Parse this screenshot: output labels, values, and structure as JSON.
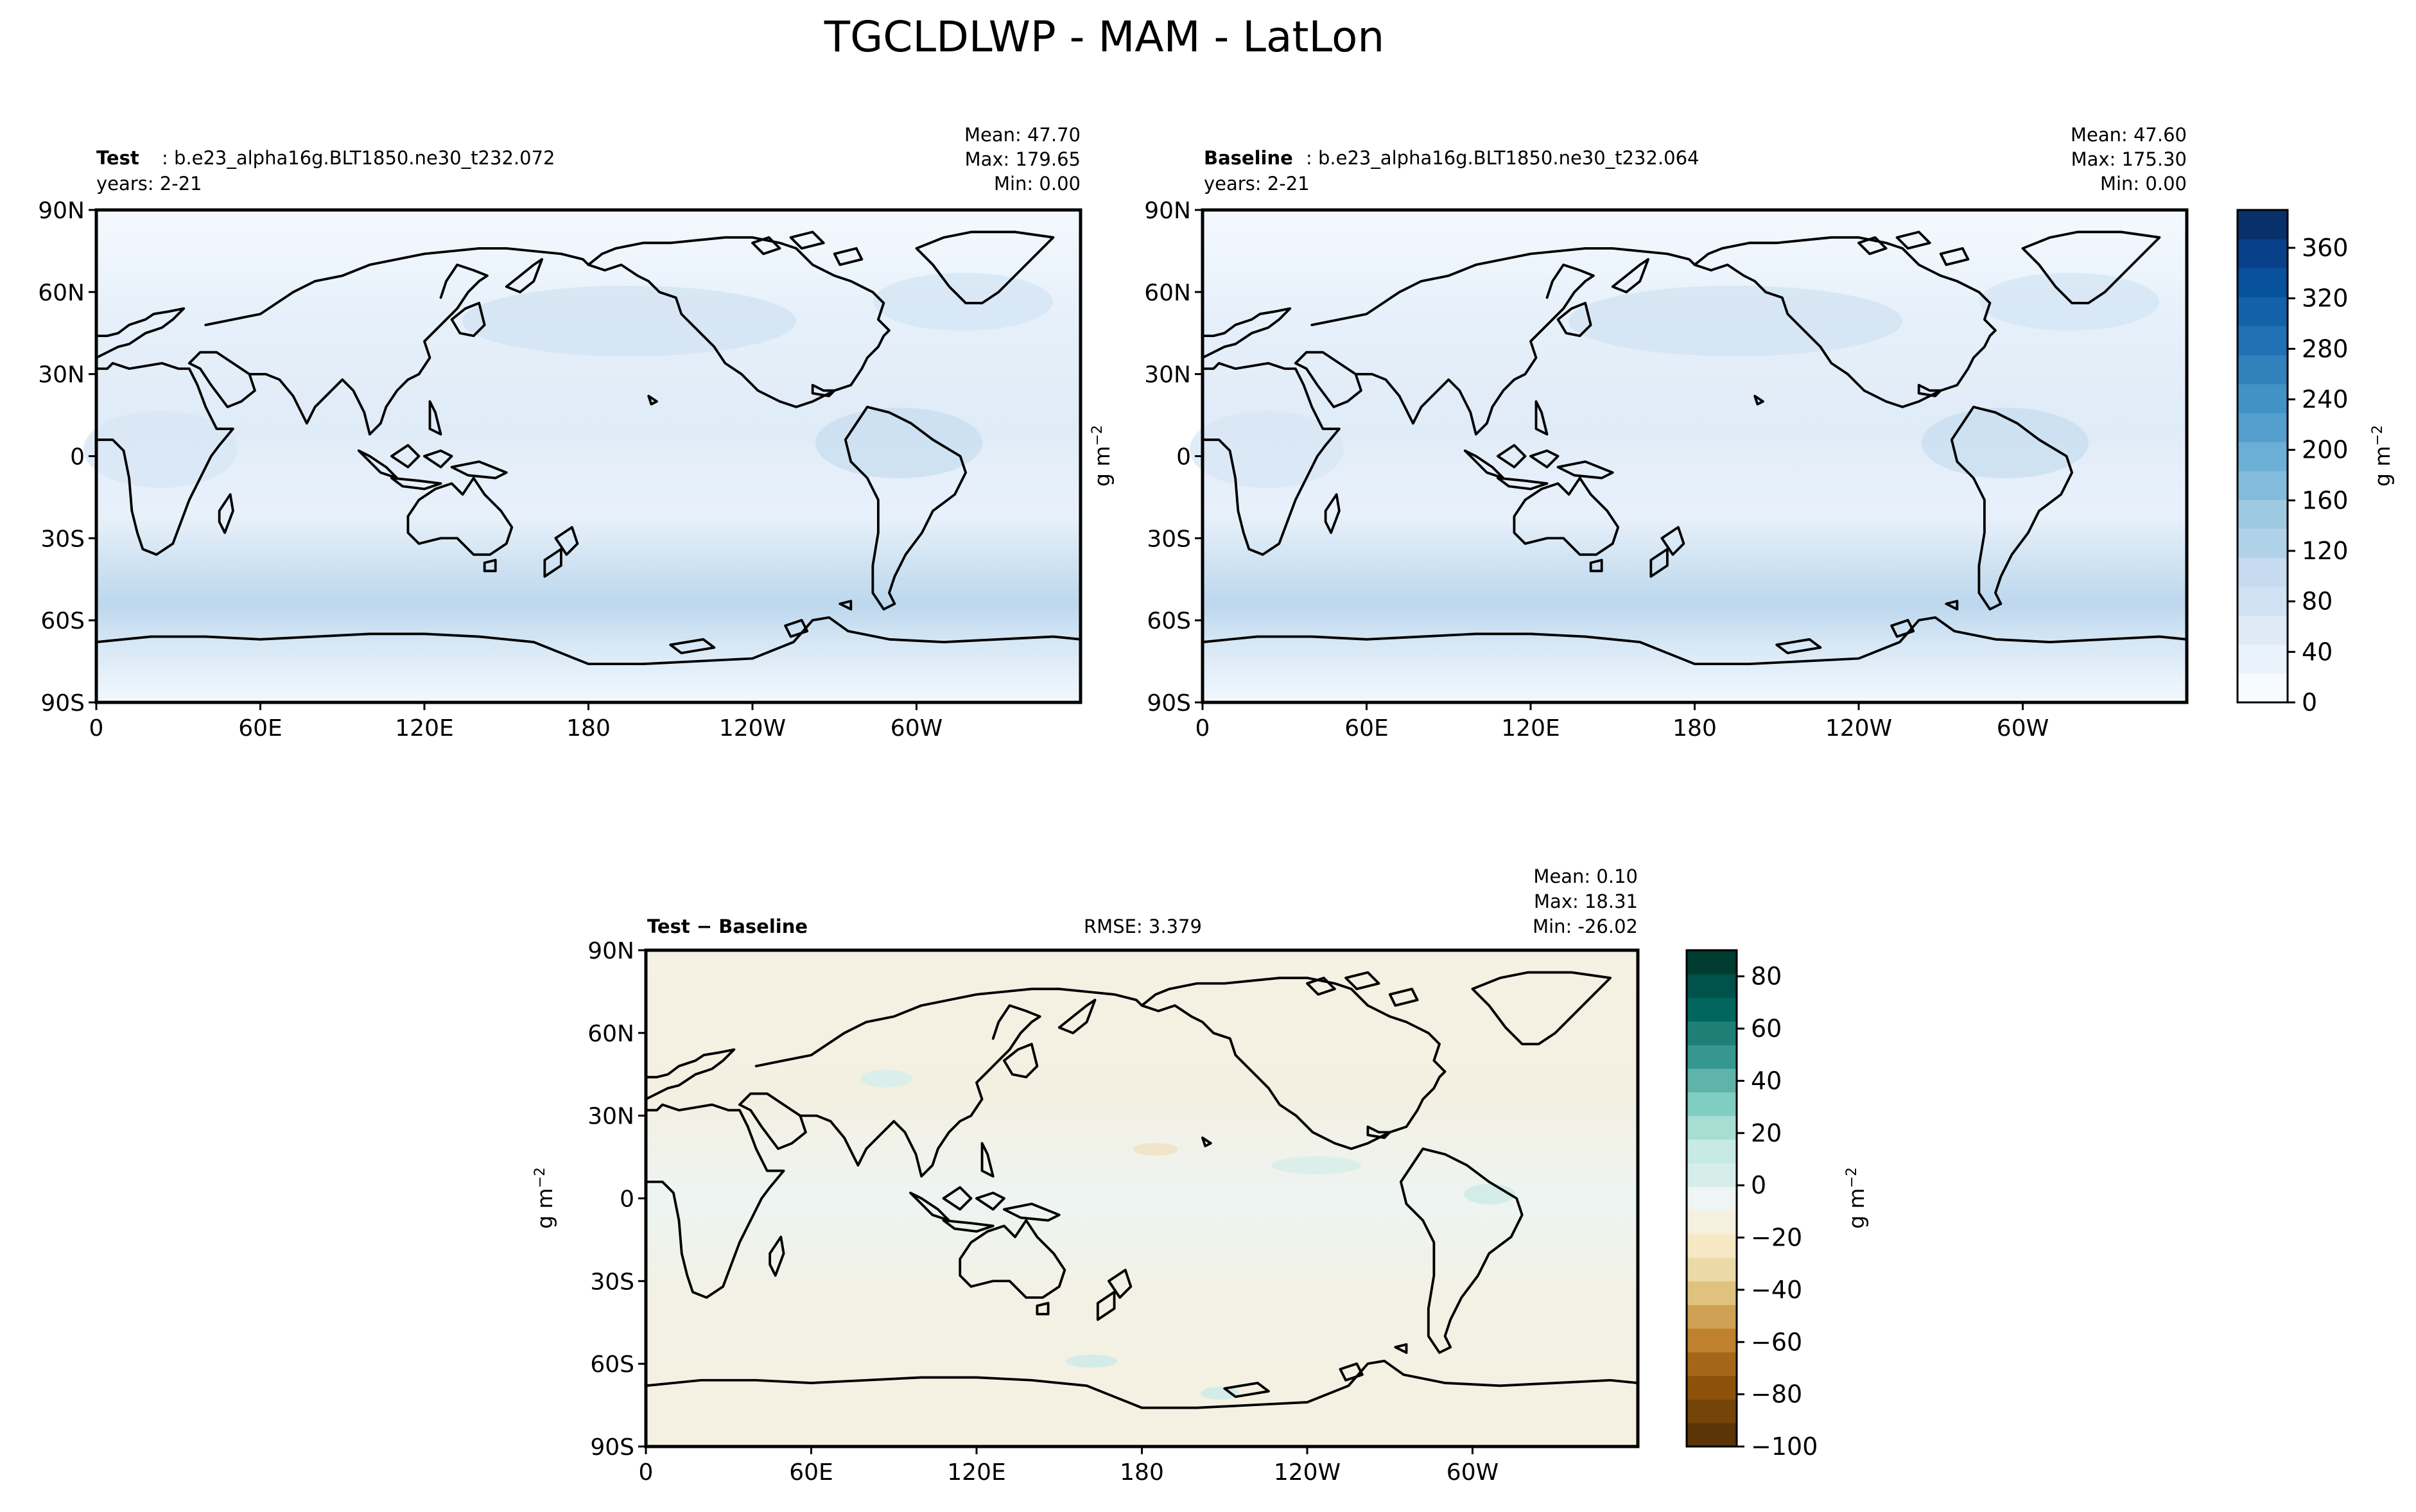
{
  "figure": {
    "title": "TGCLDLWP - MAM - LatLon"
  },
  "colors": {
    "sequential": [
      "#f7fbff",
      "#eaf3fb",
      "#deebf7",
      "#cfe1f2",
      "#c6dbef",
      "#b0d2e8",
      "#9ecae1",
      "#82bbdb",
      "#6baed6",
      "#539ecd",
      "#4292c6",
      "#3181bd",
      "#2171b5",
      "#1361a9",
      "#08519c",
      "#08408a",
      "#08306b"
    ],
    "diverging": [
      "#5b3506",
      "#744408",
      "#8c510a",
      "#a6661a",
      "#bf812d",
      "#cfa055",
      "#dfc27d",
      "#ebd9a8",
      "#f6e8c3",
      "#f5f0df",
      "#eef5f4",
      "#d6eeea",
      "#c7eae5",
      "#a7ddd3",
      "#80cdc1",
      "#5fb3a8",
      "#35978f",
      "#1f7f77",
      "#01665e",
      "#00524a",
      "#003c30"
    ],
    "coast": "#000000",
    "panel_border": "#000000"
  },
  "chart_data": [
    {
      "type": "heatmap",
      "panel": "test",
      "label": "Test",
      "case": ": b.e23_alpha16g.BLT1850.ne30_t232.072",
      "years": "years: 2-21",
      "stats": [
        "Mean: 47.70",
        "Max: 179.65",
        "Min:  0.00"
      ],
      "xticks": [
        "0",
        "60E",
        "120E",
        "180",
        "120W",
        "60W"
      ],
      "xtick_lons": [
        0,
        60,
        120,
        180,
        240,
        300
      ],
      "yticks": [
        "90N",
        "60N",
        "30N",
        "0",
        "30S",
        "60S",
        "90S"
      ],
      "ytick_lats": [
        90,
        60,
        30,
        0,
        -30,
        -60,
        -90
      ],
      "xlim": [
        0,
        360
      ],
      "ylim": [
        -90,
        90
      ],
      "units": "g m",
      "units_exp": "−2"
    },
    {
      "type": "heatmap",
      "panel": "baseline",
      "label": "Baseline",
      "case": ": b.e23_alpha16g.BLT1850.ne30_t232.064",
      "years": "years: 2-21",
      "stats": [
        "Mean: 47.60",
        "Max: 175.30",
        "Min:  0.00"
      ],
      "xticks": [
        "0",
        "60E",
        "120E",
        "180",
        "120W",
        "60W"
      ],
      "xtick_lons": [
        0,
        60,
        120,
        180,
        240,
        300
      ],
      "yticks": [
        "90N",
        "60N",
        "30N",
        "0",
        "30S",
        "60S",
        "90S"
      ],
      "ytick_lats": [
        90,
        60,
        30,
        0,
        -30,
        -60,
        -90
      ],
      "xlim": [
        0,
        360
      ],
      "ylim": [
        -90,
        90
      ],
      "units": "g m",
      "units_exp": "−2",
      "colorbar": {
        "ticks": [
          "0",
          "40",
          "80",
          "120",
          "160",
          "200",
          "240",
          "280",
          "320",
          "360"
        ],
        "tick_values": [
          0,
          40,
          80,
          120,
          160,
          200,
          240,
          280,
          320,
          360
        ],
        "range": [
          0,
          390
        ],
        "units": "g m",
        "units_exp": "−2"
      }
    },
    {
      "type": "heatmap",
      "panel": "diff",
      "label": "Test − Baseline",
      "rmse": "RMSE: 3.379",
      "stats": [
        "Mean:  0.10",
        "Max: 18.31",
        "Min: -26.02"
      ],
      "xticks": [
        "0",
        "60E",
        "120E",
        "180",
        "120W",
        "60W"
      ],
      "xtick_lons": [
        0,
        60,
        120,
        180,
        240,
        300
      ],
      "yticks": [
        "90N",
        "60N",
        "30N",
        "0",
        "30S",
        "60S",
        "90S"
      ],
      "ytick_lats": [
        90,
        60,
        30,
        0,
        -30,
        -60,
        -90
      ],
      "xlim": [
        0,
        360
      ],
      "ylim": [
        -90,
        90
      ],
      "units": "g m",
      "units_exp": "−2",
      "colorbar": {
        "ticks": [
          "−100",
          "−80",
          "−60",
          "−40",
          "−20",
          "0",
          "20",
          "40",
          "60",
          "80"
        ],
        "tick_values": [
          -100,
          -80,
          -60,
          -40,
          -20,
          0,
          20,
          40,
          60,
          80
        ],
        "range": [
          -100,
          90
        ],
        "units": "g m",
        "units_exp": "−2"
      }
    }
  ]
}
